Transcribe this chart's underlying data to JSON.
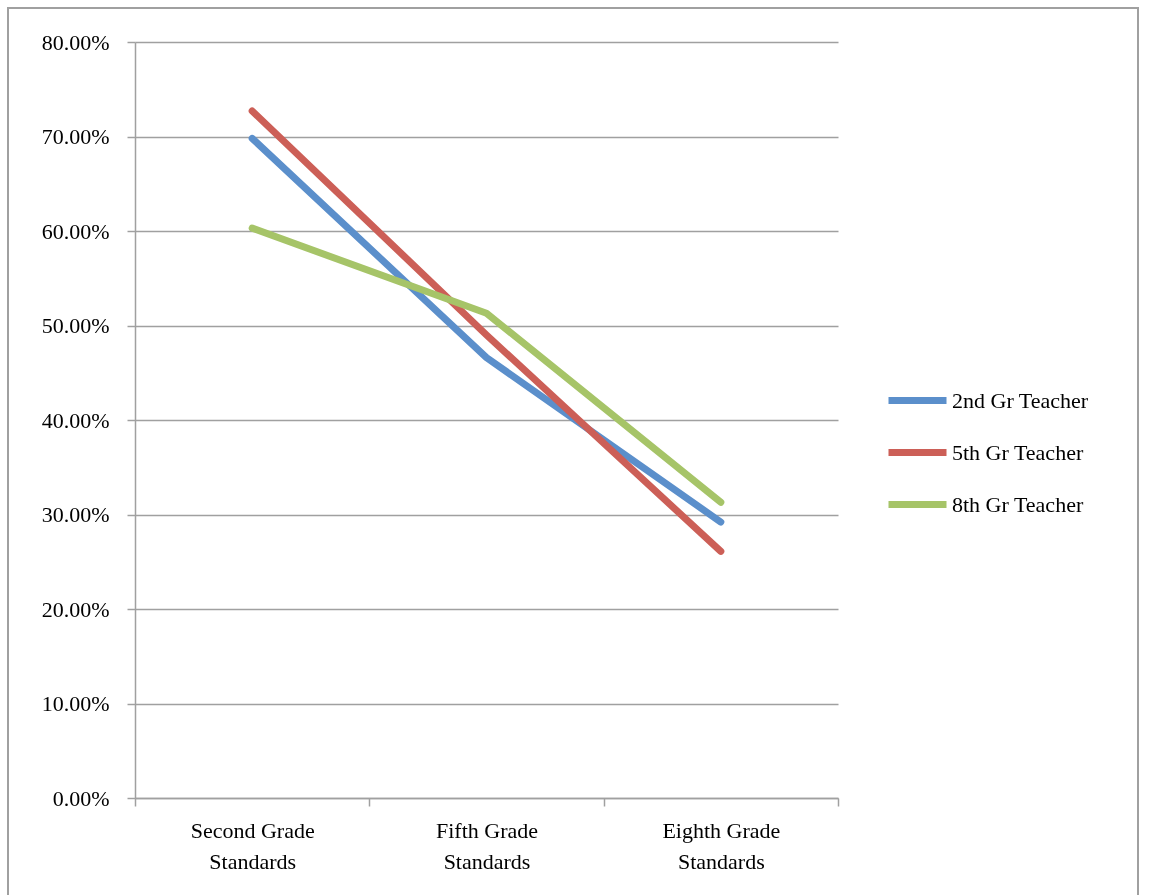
{
  "chart_data": {
    "type": "line",
    "categories": [
      "Second Grade Standards",
      "Fifth Grade Standards",
      "Eighth Grade Standards"
    ],
    "series": [
      {
        "name": "2nd Gr Teacher",
        "color": "#5b8fcb",
        "values": [
          69.8,
          46.6,
          29.2
        ]
      },
      {
        "name": "5th Gr Teacher",
        "color": "#cc5f57",
        "values": [
          72.7,
          49.0,
          26.1
        ]
      },
      {
        "name": "8th Gr Teacher",
        "color": "#a6c468",
        "values": [
          60.3,
          51.3,
          31.3
        ]
      }
    ],
    "ylim": [
      0,
      80
    ],
    "yticks": [
      {
        "value": 0,
        "label": "0.00%"
      },
      {
        "value": 10,
        "label": "10.00%"
      },
      {
        "value": 20,
        "label": "20.00%"
      },
      {
        "value": 30,
        "label": "30.00%"
      },
      {
        "value": 40,
        "label": "40.00%"
      },
      {
        "value": 50,
        "label": "50.00%"
      },
      {
        "value": 60,
        "label": "60.00%"
      },
      {
        "value": 70,
        "label": "70.00%"
      },
      {
        "value": 80,
        "label": "80.00%"
      }
    ],
    "grid": "y",
    "legend": "right"
  }
}
